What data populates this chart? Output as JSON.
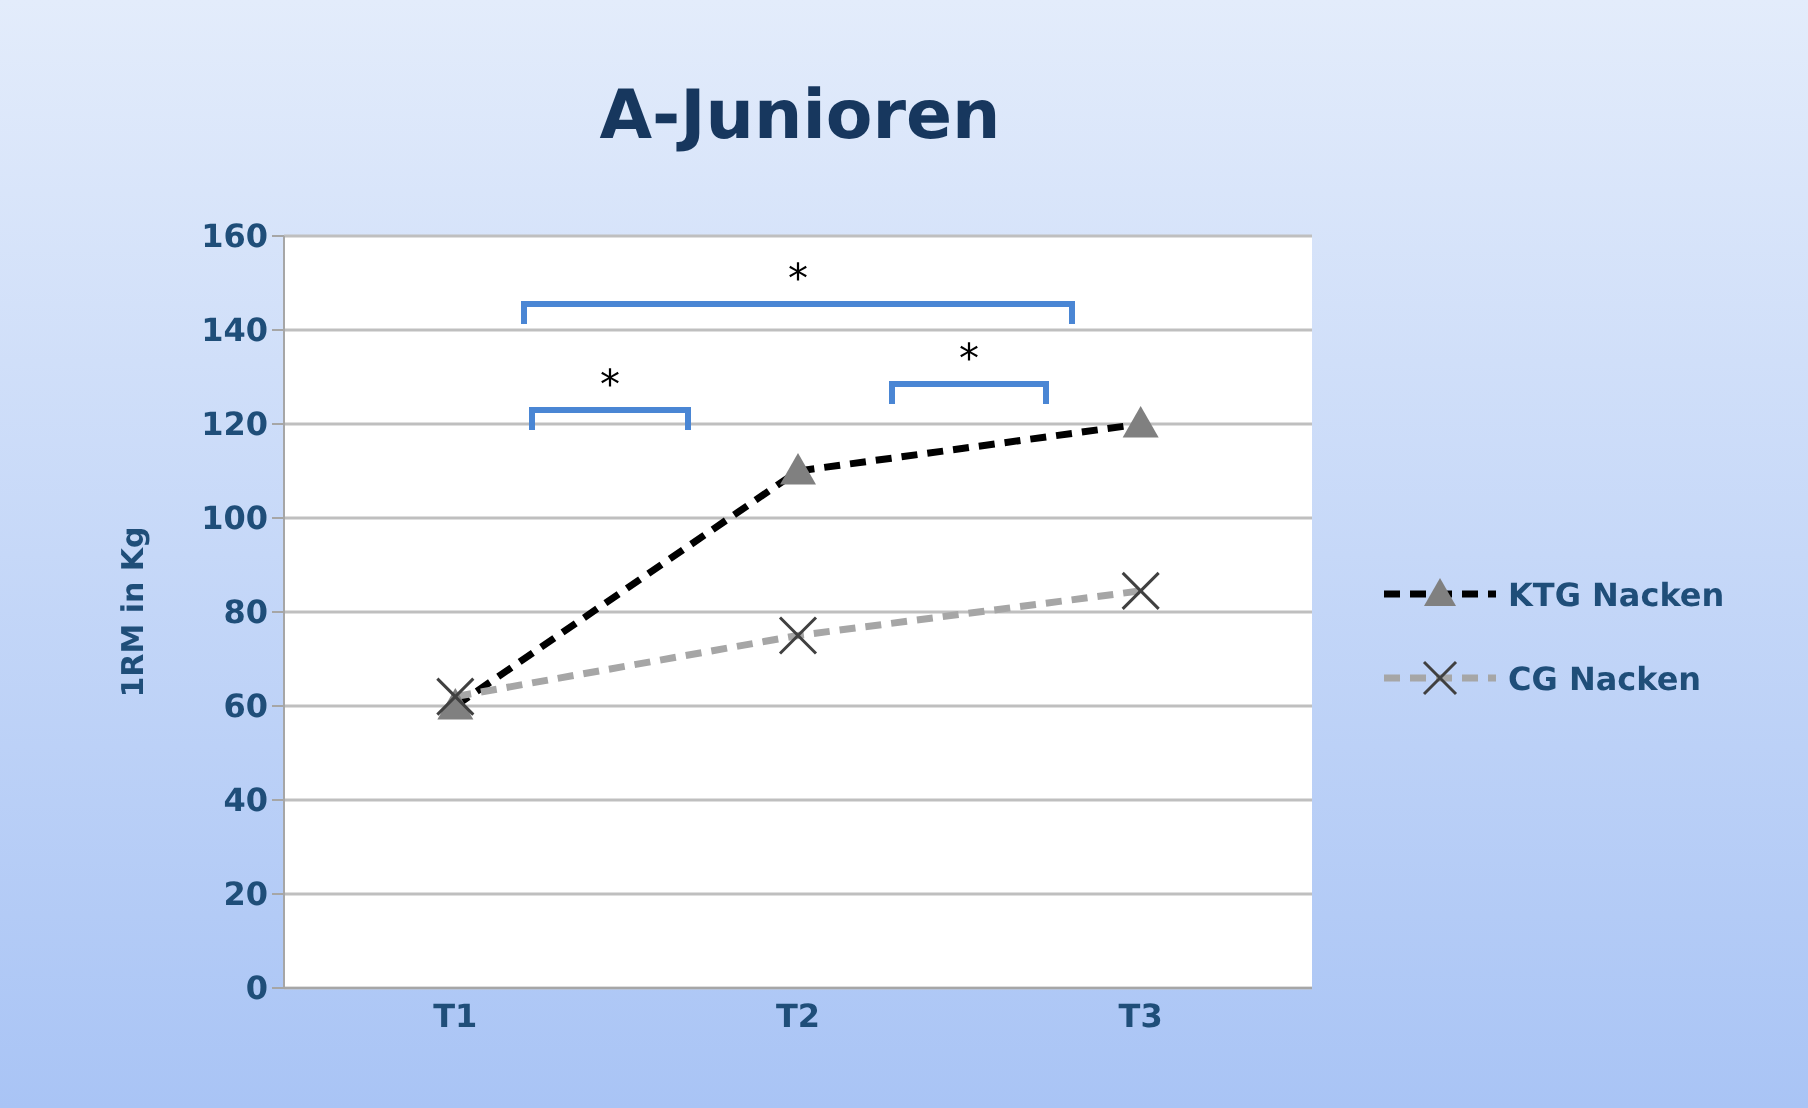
{
  "chart_data": {
    "type": "line",
    "title": "A-Junioren",
    "ylabel": "1RM in Kg",
    "categories": [
      "T1",
      "T2",
      "T3"
    ],
    "series": [
      {
        "name": "KTG Nacken",
        "color": "#000000",
        "values": [
          60,
          110,
          120
        ],
        "marker": "triangle",
        "line_style": "dashed"
      },
      {
        "name": "CG Nacken",
        "color": "#a6a6a6",
        "values": [
          62,
          75,
          84.5
        ],
        "marker": "cross",
        "line_style": "dashed"
      }
    ],
    "ylim": [
      0,
      160
    ],
    "yticks": [
      0,
      20,
      40,
      60,
      80,
      100,
      120,
      140,
      160
    ],
    "grid": "y",
    "legend": "right",
    "annotations": [
      "*",
      "*",
      "*"
    ]
  }
}
